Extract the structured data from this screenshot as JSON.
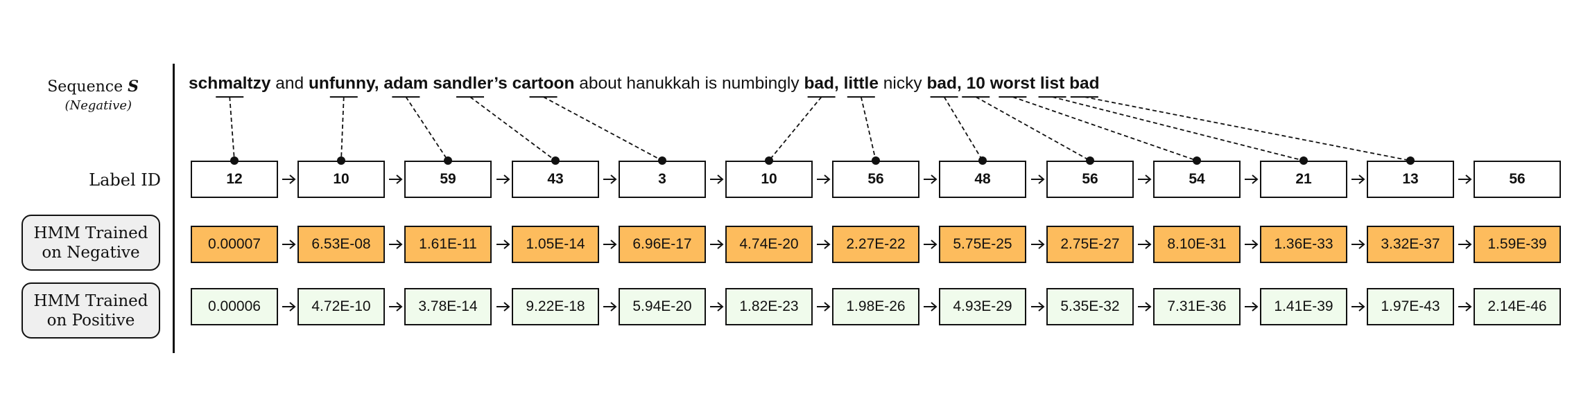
{
  "sequence_label": {
    "title": "Sequence",
    "symbol": "S",
    "subtitle": "(Negative)"
  },
  "label_id_title": "Label ID",
  "hmm_negative_title": [
    "HMM Trained",
    "on Negative"
  ],
  "hmm_positive_title": [
    "HMM Trained",
    "on Positive"
  ],
  "sentence": [
    {
      "text": "schmaltzy",
      "bold": true
    },
    {
      "text": " and ",
      "bold": false
    },
    {
      "text": "unfunny,",
      "bold": true
    },
    {
      "text": " ",
      "bold": false
    },
    {
      "text": "adam",
      "bold": true
    },
    {
      "text": " ",
      "bold": false
    },
    {
      "text": "sandler’s",
      "bold": true
    },
    {
      "text": " ",
      "bold": false
    },
    {
      "text": "cartoon",
      "bold": true
    },
    {
      "text": " about hanukkah is numbingly ",
      "bold": false
    },
    {
      "text": "bad,",
      "bold": true
    },
    {
      "text": " ",
      "bold": false
    },
    {
      "text": "little",
      "bold": true
    },
    {
      "text": " nicky ",
      "bold": false
    },
    {
      "text": "bad,",
      "bold": true
    },
    {
      "text": " ",
      "bold": false
    },
    {
      "text": "10",
      "bold": true
    },
    {
      "text": " ",
      "bold": false
    },
    {
      "text": "worst",
      "bold": true
    },
    {
      "text": " ",
      "bold": false
    },
    {
      "text": "list",
      "bold": true
    },
    {
      "text": " ",
      "bold": false
    },
    {
      "text": "bad",
      "bold": true
    }
  ],
  "label_ids": [
    "12",
    "10",
    "59",
    "43",
    "3",
    "10",
    "56",
    "48",
    "56",
    "54",
    "21",
    "13",
    "56"
  ],
  "negative_probs": [
    "0.00007",
    "6.53E-08",
    "1.61E-11",
    "1.05E-14",
    "6.96E-17",
    "4.74E-20",
    "2.27E-22",
    "5.75E-25",
    "2.75E-27",
    "8.10E-31",
    "1.36E-33",
    "3.32E-37",
    "1.59E-39"
  ],
  "positive_probs": [
    "0.00006",
    "4.72E-10",
    "3.78E-14",
    "9.22E-18",
    "5.94E-20",
    "1.82E-23",
    "1.98E-26",
    "4.93E-29",
    "5.35E-32",
    "7.31E-36",
    "1.41E-39",
    "1.97E-43",
    "2.14E-46"
  ],
  "colors": {
    "negative_fill": "#fdbc5d",
    "positive_fill": "#f0fbec",
    "label_fill": "#ffffff",
    "panel_fill": "#efefef"
  }
}
